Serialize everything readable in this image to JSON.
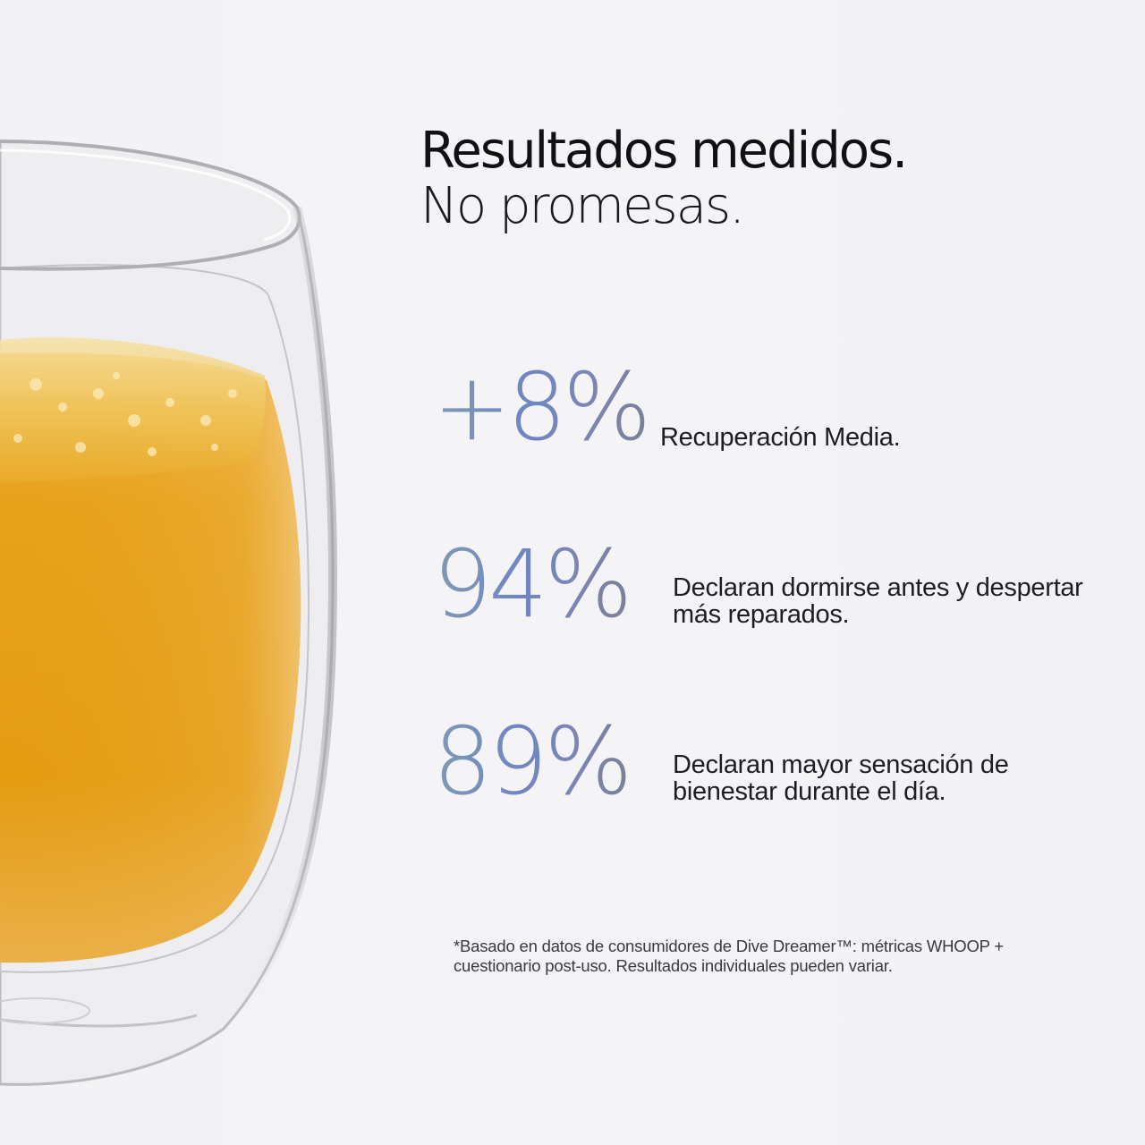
{
  "headline": {
    "line1": "Resultados medidos.",
    "line2": "No promesas."
  },
  "stats": [
    {
      "value": "+8%",
      "description_lines": [
        "Recuperación Media."
      ]
    },
    {
      "value": "94%",
      "description_lines": [
        "Declaran dormirse antes y despertar",
        "más reparados."
      ]
    },
    {
      "value": "89%",
      "description_lines": [
        "Declaran mayor sensación de",
        "bienestar durante el día."
      ]
    }
  ],
  "footnote": {
    "line1": "*Basado en datos de consumidores de Dive Dreamer™: métricas WHOOP +",
    "line2": "cuestionario post-uso. Resultados individuales pueden variar."
  },
  "colors": {
    "background": "#f3f3f5",
    "headline_text": "#111114",
    "stat_gradient_start": "#7f9ab4",
    "stat_gradient_mid": "#6f86c2",
    "stat_gradient_end": "#7c7f96",
    "liquid": "#e8a319"
  }
}
